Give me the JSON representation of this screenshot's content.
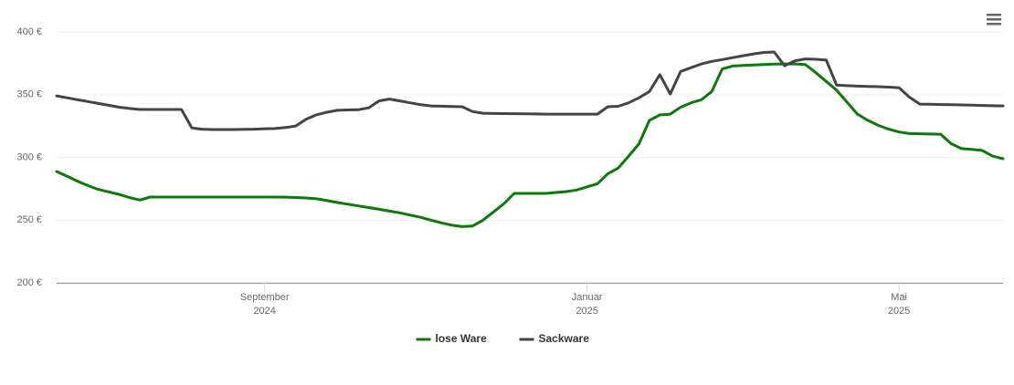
{
  "chart_data": {
    "type": "line",
    "categories": [
      null,
      null,
      null,
      null,
      null,
      null,
      null,
      null,
      null,
      null,
      null,
      null,
      null,
      null,
      null,
      null,
      null,
      null,
      null,
      null,
      [
        "September",
        "2024"
      ],
      null,
      null,
      null,
      null,
      null,
      null,
      null,
      null,
      null,
      null,
      null,
      null,
      null,
      null,
      null,
      null,
      null,
      null,
      null,
      null,
      null,
      null,
      null,
      null,
      null,
      null,
      null,
      null,
      null,
      null,
      [
        "Januar",
        "2025"
      ],
      null,
      null,
      null,
      null,
      null,
      null,
      null,
      null,
      null,
      null,
      null,
      null,
      null,
      null,
      null,
      null,
      null,
      null,
      null,
      null,
      null,
      null,
      null,
      null,
      null,
      null,
      null,
      null,
      null,
      [
        "Mai",
        "2025"
      ],
      null,
      null,
      null,
      null,
      null,
      null,
      null,
      null,
      null,
      null
    ],
    "series": [
      {
        "name": "lose Ware",
        "color": "#0b7a0b",
        "values": [
          288.7,
          285,
          281,
          277.5,
          274.5,
          272.5,
          270.5,
          268,
          266,
          268.4,
          268.4,
          268.4,
          268.4,
          268.4,
          268.4,
          268.4,
          268.4,
          268.4,
          268.4,
          268.4,
          268.4,
          268.4,
          268.3,
          268,
          267.6,
          267,
          265.5,
          264,
          262.7,
          261.3,
          260,
          258.6,
          257.2,
          255.8,
          254,
          252.2,
          250,
          247.8,
          246,
          244.8,
          245.3,
          250,
          256.5,
          263,
          271.3,
          271.3,
          271.3,
          271.3,
          272,
          272.7,
          274,
          276.5,
          279,
          287,
          291.5,
          301,
          310.8,
          329.5,
          333.8,
          334.5,
          340,
          343.5,
          346,
          352.5,
          370.5,
          372.8,
          373.2,
          373.6,
          374,
          374.4,
          374.5,
          374.5,
          374,
          367.5,
          360.5,
          353.5,
          344,
          334.5,
          329.5,
          325.5,
          322.5,
          320.2,
          319,
          318.8,
          318.6,
          318.5,
          311,
          307,
          306.3,
          305.5,
          301,
          298.9
        ]
      },
      {
        "name": "Sackware",
        "color": "#434348",
        "values": [
          349,
          347.5,
          346,
          344.5,
          343,
          341.5,
          340,
          339,
          338.2,
          338.2,
          338.2,
          338.2,
          338.2,
          323.5,
          322.5,
          322.2,
          322.2,
          322.2,
          322.3,
          322.5,
          322.8,
          323,
          323.8,
          325,
          330.5,
          334,
          336,
          337.5,
          337.8,
          338,
          339.5,
          345,
          346.5,
          345,
          343.5,
          342,
          341,
          340.8,
          340.6,
          340.4,
          336.5,
          335.2,
          335,
          334.9,
          334.8,
          334.7,
          334.6,
          334.5,
          334.5,
          334.5,
          334.5,
          334.5,
          334.5,
          340.4,
          340.7,
          343.5,
          347.5,
          352.5,
          366,
          350.5,
          368.5,
          371.5,
          374.5,
          376.5,
          378,
          379.5,
          381,
          382.5,
          383.6,
          384,
          373,
          377,
          378.5,
          378.2,
          377.5,
          357.6,
          357.2,
          356.8,
          356.6,
          356.4,
          356,
          355.5,
          348,
          342.5,
          342.3,
          342.1,
          342,
          341.8,
          341.6,
          341.4,
          341.2,
          341
        ]
      }
    ],
    "ylim": [
      200,
      400
    ],
    "yticks": [
      {
        "value": 200,
        "label": "200 €"
      },
      {
        "value": 250,
        "label": "250 €"
      },
      {
        "value": 300,
        "label": "300 €"
      },
      {
        "value": 350,
        "label": "350 €"
      },
      {
        "value": 400,
        "label": "400 €"
      }
    ],
    "grid": true,
    "legend": "bottom"
  }
}
